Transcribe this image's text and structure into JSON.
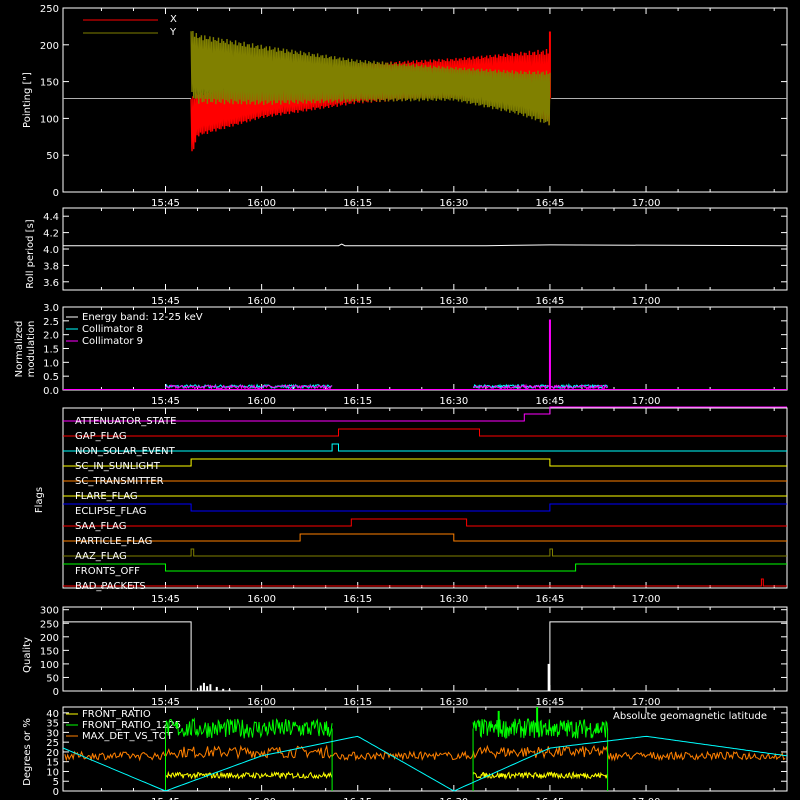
{
  "time_axis": {
    "ticks": [
      "15:45",
      "16:00",
      "16:15",
      "16:30",
      "16:45",
      "17:00"
    ],
    "tick_minutes": [
      945,
      960,
      975,
      990,
      1005,
      1020
    ],
    "range_minutes": [
      929,
      1042
    ]
  },
  "colors": {
    "background": "#000000",
    "axes": "#ffffff",
    "x_pointing": "#ff0000",
    "y_pointing": "#808000",
    "collimator8": "#00ffff",
    "collimator9": "#ff00ff",
    "front_ratio": "#ffff00",
    "front_ratio_1225": "#00ff00",
    "max_det": "#ff8000",
    "geomag": "#00ffff"
  },
  "chart_data": [
    {
      "id": "pointing",
      "type": "line",
      "ylabel": "Pointing [\"]",
      "yticks": [
        "0",
        "50",
        "100",
        "150",
        "200",
        "250"
      ],
      "ytick_values": [
        0,
        50,
        100,
        150,
        200,
        250
      ],
      "ylim": [
        0,
        250
      ],
      "baseline": 127,
      "legend": [
        {
          "name": "X",
          "color": "#ff0000"
        },
        {
          "name": "Y",
          "color": "#808000"
        }
      ],
      "series": [
        {
          "name": "X",
          "color": "#ff0000",
          "x": [
            949,
            950,
            960,
            975,
            990,
            1000,
            1005
          ],
          "low": [
            45,
            75,
            100,
            120,
            128,
            125,
            90
          ],
          "high": [
            130,
            135,
            150,
            175,
            182,
            190,
            195
          ],
          "spike": [
            1005,
            218
          ]
        },
        {
          "name": "Y",
          "color": "#808000",
          "x": [
            949,
            950,
            960,
            975,
            990,
            1000,
            1005
          ],
          "low": [
            130,
            120,
            118,
            122,
            124,
            105,
            90
          ],
          "high": [
            222,
            215,
            200,
            180,
            170,
            165,
            165
          ]
        }
      ]
    },
    {
      "id": "roll",
      "type": "line",
      "ylabel": "Roll period [s]",
      "yticks": [
        "3.6",
        "3.8",
        "4.0",
        "4.2",
        "4.4"
      ],
      "ytick_values": [
        3.6,
        3.8,
        4.0,
        4.2,
        4.4
      ],
      "ylim": [
        3.5,
        4.5
      ],
      "series": [
        {
          "name": "",
          "color": "#ffffff",
          "x": [
            929,
            972,
            972.5,
            973,
            995,
            1005,
            1042
          ],
          "y": [
            4.04,
            4.04,
            4.06,
            4.04,
            4.04,
            4.05,
            4.04
          ]
        }
      ]
    },
    {
      "id": "modulation",
      "type": "line",
      "ylabel_lines": [
        "Normalized",
        "modulation"
      ],
      "yticks": [
        "0.0",
        "0.5",
        "1.0",
        "1.5",
        "2.0",
        "2.5",
        "3.0"
      ],
      "ytick_values": [
        0,
        0.5,
        1,
        1.5,
        2,
        2.5,
        3
      ],
      "ylim": [
        0,
        3
      ],
      "legend": [
        {
          "name": "Energy band: 12-25 keV",
          "color": "#ffffff"
        },
        {
          "name": "Collimator 8",
          "color": "#00ffff"
        },
        {
          "name": "Collimator 9",
          "color": "#ff00ff"
        }
      ],
      "segments": [
        [
          945,
          971
        ],
        [
          993,
          1014
        ]
      ],
      "spike": [
        1005,
        2.55
      ]
    },
    {
      "id": "flags",
      "type": "step",
      "ylabel": "Flags",
      "flags": [
        {
          "name": "ATTENUATOR_STATE",
          "color": "#ff00ff",
          "x": [
            929,
            1001,
            1001,
            1005,
            1005,
            1042
          ],
          "level": [
            0,
            0,
            1,
            1,
            2,
            2
          ]
        },
        {
          "name": "GAP_FLAG",
          "color": "#ff0000",
          "x": [
            929,
            972,
            972,
            994,
            994,
            1042
          ],
          "level": [
            0,
            0,
            1,
            1,
            0,
            0
          ]
        },
        {
          "name": "NON_SOLAR_EVENT",
          "color": "#00ffff",
          "x": [
            929,
            971,
            971,
            972,
            972,
            1042
          ],
          "level": [
            0,
            0,
            1,
            1,
            0,
            0
          ]
        },
        {
          "name": "SC_IN_SUNLIGHT",
          "color": "#ffff00",
          "x": [
            929,
            949,
            949,
            1005,
            1005,
            1042
          ],
          "level": [
            0,
            0,
            1,
            1,
            0,
            0
          ]
        },
        {
          "name": "SC_TRANSMITTER",
          "color": "#ff8000",
          "x": [
            929,
            1042
          ],
          "level": [
            0,
            0
          ]
        },
        {
          "name": "FLARE_FLAG",
          "color": "#ffff00",
          "x": [
            929,
            1042
          ],
          "level": [
            0,
            0
          ]
        },
        {
          "name": "ECLIPSE_FLAG",
          "color": "#0000ff",
          "x": [
            929,
            949,
            949,
            1005,
            1005,
            1042
          ],
          "level": [
            1,
            1,
            0,
            0,
            1,
            1
          ]
        },
        {
          "name": "SAA_FLAG",
          "color": "#ff0000",
          "x": [
            929,
            974,
            974,
            992,
            992,
            1042
          ],
          "level": [
            0,
            0,
            1,
            1,
            0,
            0
          ]
        },
        {
          "name": "PARTICLE_FLAG",
          "color": "#ff8000",
          "x": [
            929,
            966,
            966,
            990,
            990,
            1042
          ],
          "level": [
            0,
            0,
            1,
            1,
            0,
            0
          ]
        },
        {
          "name": "AAZ_FLAG",
          "color": "#808000",
          "x": [
            929,
            949,
            949,
            949.4,
            949.4,
            1005,
            1005,
            1005.4,
            1005.4,
            1042
          ],
          "level": [
            0,
            0,
            1,
            1,
            0,
            0,
            1,
            1,
            0,
            0
          ]
        },
        {
          "name": "FRONTS_OFF",
          "color": "#00ff00",
          "x": [
            929,
            945,
            945,
            1009,
            1009,
            1042
          ],
          "level": [
            1,
            1,
            0,
            0,
            1,
            1
          ]
        },
        {
          "name": "BAD_PACKETS",
          "color": "#ff0000",
          "x": [
            929,
            1038,
            1038,
            1038.3,
            1038.3,
            1042
          ],
          "level": [
            0,
            0,
            1,
            1,
            0,
            0
          ]
        }
      ]
    },
    {
      "id": "quality",
      "type": "step",
      "ylabel": "Quality",
      "yticks": [
        "0",
        "50",
        "100",
        "150",
        "200",
        "250",
        "300"
      ],
      "ytick_values": [
        0,
        50,
        100,
        150,
        200,
        250,
        300
      ],
      "ylim": [
        0,
        310
      ],
      "x": [
        929,
        949,
        949,
        1005,
        1005,
        1042
      ],
      "y": [
        255,
        255,
        0,
        0,
        255,
        255
      ],
      "bursts": [
        [
          950.5,
          20
        ],
        [
          951,
          30
        ],
        [
          951.5,
          18
        ],
        [
          952,
          25
        ],
        [
          953,
          15
        ],
        [
          954,
          8
        ],
        [
          955,
          5
        ],
        [
          1004.8,
          100
        ]
      ]
    },
    {
      "id": "ratios",
      "type": "line",
      "ylabel": "Degrees or %",
      "yticks": [
        "0",
        "5",
        "10",
        "15",
        "20",
        "25",
        "30",
        "35",
        "40"
      ],
      "ytick_values": [
        0,
        5,
        10,
        15,
        20,
        25,
        30,
        35,
        40
      ],
      "ylim": [
        0,
        43
      ],
      "legend": [
        {
          "name": "FRONT_RATIO",
          "color": "#ffff00"
        },
        {
          "name": "FRONT_RATIO_1225",
          "color": "#00ff00"
        },
        {
          "name": "MAX_DET_VS_TOT",
          "color": "#ff8000"
        }
      ],
      "legend_right": {
        "name": "Absolute geomagnetic latitude",
        "color": "#00ffff"
      },
      "segments": [
        [
          945,
          971
        ],
        [
          993,
          1014
        ]
      ],
      "levels": {
        "FRONT_RATIO": 8,
        "FRONT_RATIO_1225": 32,
        "MAX_DET_VS_TOT": 20
      },
      "geomag": {
        "x": [
          929,
          945,
          960,
          975,
          990,
          1005,
          1020,
          1042
        ],
        "y": [
          22,
          0,
          18,
          28,
          0,
          22,
          28,
          18
        ]
      }
    }
  ]
}
